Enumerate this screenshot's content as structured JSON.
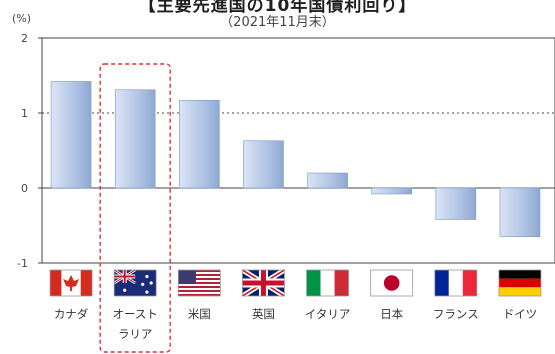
{
  "chart_data": {
    "type": "bar",
    "title": "【主要先進国の10年国債利回り】",
    "subtitle": "（2021年11月末）",
    "ylabel": "(%)",
    "ylim": [
      -1,
      2
    ],
    "yticks": [
      "2",
      "1",
      "0",
      "-1"
    ],
    "grid": "dotted line at 1",
    "categories": [
      "カナダ",
      "オースト\nラリア",
      "米国",
      "英国",
      "イタリア",
      "日本",
      "フランス",
      "ドイツ"
    ],
    "flags": [
      "canada-flag",
      "australia-flag",
      "usa-flag",
      "uk-flag",
      "italy-flag",
      "japan-flag",
      "france-flag",
      "germany-flag"
    ],
    "values": [
      1.42,
      1.31,
      1.17,
      0.63,
      0.2,
      -0.08,
      -0.42,
      -0.65
    ],
    "highlight": "オースト\nラリア",
    "colors": {
      "bar_light": "#d7e2f3",
      "bar_dark": "#8aa3cc",
      "highlight_border": "#e03030"
    }
  }
}
